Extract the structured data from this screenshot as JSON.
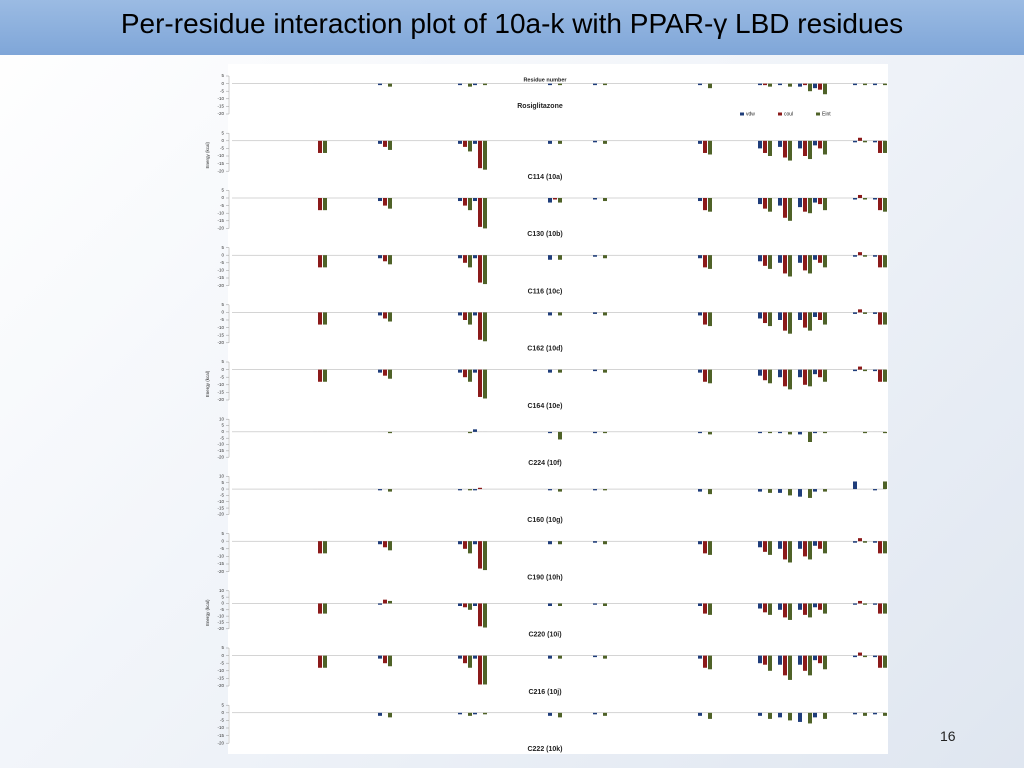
{
  "slide": {
    "title": "Per-residue interaction plot of 10a-k with PPAR-γ LBD residues",
    "page_number": "16"
  },
  "figure": {
    "xlabel": "Residue number",
    "ylabel": "Energy (kcal)"
  },
  "chart_data": [
    {
      "type": "bar",
      "label": "Rosiglitazone",
      "categories": [
        null,
        null,
        null,
        null,
        null,
        null,
        null,
        null,
        null,
        null,
        null,
        null,
        null
      ],
      "ylim": [
        -20,
        5
      ],
      "yticks": [
        5,
        0,
        -5,
        -10,
        -15,
        -20
      ],
      "legend": "top-right",
      "series": [
        {
          "name": "vdw",
          "color": "#1f3d7a",
          "values": [
            0,
            -1,
            -1,
            -1,
            -1,
            -1,
            -1,
            -1,
            -1,
            -2,
            -3,
            -1,
            -1
          ]
        },
        {
          "name": "coul",
          "color": "#8b1a1a",
          "values": [
            0,
            0,
            0,
            0,
            0,
            0,
            0,
            -1,
            0,
            -1,
            -4,
            0,
            0
          ]
        },
        {
          "name": "Eint",
          "color": "#4f6228",
          "values": [
            0,
            -2,
            -2,
            -1,
            -1,
            -1,
            -3,
            -2,
            -2,
            -5,
            -7,
            -1,
            -1
          ]
        }
      ]
    },
    {
      "type": "bar",
      "label": "C114 (10a)",
      "categories": [
        null,
        null,
        null,
        null,
        null,
        null,
        null,
        null,
        null,
        null,
        null,
        null,
        null
      ],
      "ylim": [
        -20,
        5
      ],
      "yticks": [
        5,
        0,
        -5,
        -10,
        -15,
        -20
      ],
      "series": [
        {
          "name": "vdw",
          "color": "#1f3d7a",
          "values": [
            0,
            -2,
            -2,
            -2,
            -2,
            -1,
            -2,
            -5,
            -4,
            -5,
            -3,
            -1,
            -1
          ]
        },
        {
          "name": "coul",
          "color": "#8b1a1a",
          "values": [
            -8,
            -4,
            -4,
            -18,
            0,
            0,
            -8,
            -8,
            -11,
            -10,
            -5,
            2,
            -8
          ]
        },
        {
          "name": "Eint",
          "color": "#4f6228",
          "values": [
            -8,
            -6,
            -7,
            -19,
            -2,
            -2,
            -9,
            -10,
            -13,
            -12,
            -9,
            -1,
            -8
          ]
        }
      ]
    },
    {
      "type": "bar",
      "label": "C130 (10b)",
      "categories": [
        null,
        null,
        null,
        null,
        null,
        null,
        null,
        null,
        null,
        null,
        null,
        null,
        null
      ],
      "ylim": [
        -20,
        5
      ],
      "yticks": [
        5,
        0,
        -5,
        -10,
        -15,
        -20
      ],
      "series": [
        {
          "name": "vdw",
          "color": "#1f3d7a",
          "values": [
            0,
            -2,
            -2,
            -2,
            -3,
            -1,
            -2,
            -4,
            -5,
            -6,
            -3,
            -1,
            -1
          ]
        },
        {
          "name": "coul",
          "color": "#8b1a1a",
          "values": [
            -8,
            -5,
            -5,
            -19,
            -1,
            0,
            -8,
            -7,
            -13,
            -9,
            -4,
            2,
            -8
          ]
        },
        {
          "name": "Eint",
          "color": "#4f6228",
          "values": [
            -8,
            -7,
            -8,
            -20,
            -3,
            -2,
            -9,
            -9,
            -15,
            -10,
            -8,
            -1,
            -9
          ]
        }
      ]
    },
    {
      "type": "bar",
      "label": "C116 (10c)",
      "categories": [
        null,
        null,
        null,
        null,
        null,
        null,
        null,
        null,
        null,
        null,
        null,
        null,
        null
      ],
      "ylim": [
        -20,
        5
      ],
      "yticks": [
        5,
        0,
        -5,
        -10,
        -15,
        -20
      ],
      "series": [
        {
          "name": "vdw",
          "color": "#1f3d7a",
          "values": [
            0,
            -2,
            -2,
            -2,
            -3,
            -1,
            -2,
            -4,
            -5,
            -5,
            -3,
            -1,
            -1
          ]
        },
        {
          "name": "coul",
          "color": "#8b1a1a",
          "values": [
            -8,
            -4,
            -5,
            -18,
            0,
            0,
            -8,
            -7,
            -12,
            -10,
            -5,
            2,
            -8
          ]
        },
        {
          "name": "Eint",
          "color": "#4f6228",
          "values": [
            -8,
            -6,
            -8,
            -19,
            -3,
            -2,
            -9,
            -9,
            -14,
            -12,
            -8,
            -1,
            -8
          ]
        }
      ]
    },
    {
      "type": "bar",
      "label": "C162 (10d)",
      "categories": [
        null,
        null,
        null,
        null,
        null,
        null,
        null,
        null,
        null,
        null,
        null,
        null,
        null
      ],
      "ylim": [
        -20,
        5
      ],
      "yticks": [
        5,
        0,
        -5,
        -10,
        -15,
        -20
      ],
      "series": [
        {
          "name": "vdw",
          "color": "#1f3d7a",
          "values": [
            0,
            -2,
            -2,
            -2,
            -2,
            -1,
            -2,
            -4,
            -5,
            -5,
            -3,
            -1,
            -1
          ]
        },
        {
          "name": "coul",
          "color": "#8b1a1a",
          "values": [
            -8,
            -4,
            -5,
            -18,
            0,
            0,
            -8,
            -7,
            -12,
            -10,
            -5,
            2,
            -8
          ]
        },
        {
          "name": "Eint",
          "color": "#4f6228",
          "values": [
            -8,
            -6,
            -8,
            -19,
            -2,
            -2,
            -9,
            -9,
            -14,
            -12,
            -8,
            -1,
            -8
          ]
        }
      ]
    },
    {
      "type": "bar",
      "label": "C164 (10e)",
      "categories": [
        null,
        null,
        null,
        null,
        null,
        null,
        null,
        null,
        null,
        null,
        null,
        null,
        null
      ],
      "ylim": [
        -20,
        5
      ],
      "yticks": [
        5,
        0,
        -5,
        -10,
        -15,
        -20
      ],
      "series": [
        {
          "name": "vdw",
          "color": "#1f3d7a",
          "values": [
            0,
            -2,
            -2,
            -2,
            -2,
            -1,
            -2,
            -4,
            -5,
            -5,
            -3,
            -1,
            -1
          ]
        },
        {
          "name": "coul",
          "color": "#8b1a1a",
          "values": [
            -8,
            -4,
            -5,
            -18,
            0,
            0,
            -8,
            -7,
            -11,
            -10,
            -5,
            2,
            -8
          ]
        },
        {
          "name": "Eint",
          "color": "#4f6228",
          "values": [
            -8,
            -6,
            -8,
            -19,
            -2,
            -2,
            -9,
            -9,
            -13,
            -11,
            -8,
            -1,
            -8
          ]
        }
      ]
    },
    {
      "type": "bar",
      "label": "C224 (10f)",
      "categories": [
        null,
        null,
        null,
        null,
        null,
        null,
        null,
        null,
        null,
        null,
        null,
        null,
        null
      ],
      "ylim": [
        -20,
        10
      ],
      "yticks": [
        10,
        5,
        0,
        -5,
        -10,
        -15,
        -20
      ],
      "series": [
        {
          "name": "vdw",
          "color": "#1f3d7a",
          "values": [
            0,
            0,
            0,
            2,
            -1,
            -1,
            -1,
            -1,
            -1,
            -2,
            -1,
            0,
            0
          ]
        },
        {
          "name": "coul",
          "color": "#8b1a1a",
          "values": [
            0,
            0,
            0,
            0,
            0,
            0,
            0,
            0,
            0,
            0,
            0,
            0,
            0
          ]
        },
        {
          "name": "Eint",
          "color": "#4f6228",
          "values": [
            0,
            -1,
            -1,
            0,
            -6,
            -1,
            -2,
            -1,
            -2,
            -8,
            -1,
            -1,
            -1
          ]
        }
      ]
    },
    {
      "type": "bar",
      "label": "C160 (10g)",
      "categories": [
        null,
        null,
        null,
        null,
        null,
        null,
        null,
        null,
        null,
        null,
        null,
        null,
        null
      ],
      "ylim": [
        -20,
        10
      ],
      "yticks": [
        10,
        5,
        0,
        -5,
        -10,
        -15,
        -20
      ],
      "series": [
        {
          "name": "vdw",
          "color": "#1f3d7a",
          "values": [
            0,
            -1,
            -1,
            -1,
            -1,
            -1,
            -2,
            -2,
            -3,
            -6,
            -2,
            6,
            -1
          ]
        },
        {
          "name": "coul",
          "color": "#8b1a1a",
          "values": [
            0,
            0,
            0,
            1,
            0,
            0,
            0,
            0,
            0,
            0,
            0,
            0,
            0
          ]
        },
        {
          "name": "Eint",
          "color": "#4f6228",
          "values": [
            0,
            -2,
            -1,
            0,
            -2,
            -1,
            -4,
            -3,
            -5,
            -7,
            -2,
            0,
            6
          ]
        }
      ]
    },
    {
      "type": "bar",
      "label": "C190 (10h)",
      "categories": [
        null,
        null,
        null,
        null,
        null,
        null,
        null,
        null,
        null,
        null,
        null,
        null,
        null
      ],
      "ylim": [
        -20,
        5
      ],
      "yticks": [
        5,
        0,
        -5,
        -10,
        -15,
        -20
      ],
      "series": [
        {
          "name": "vdw",
          "color": "#1f3d7a",
          "values": [
            0,
            -2,
            -2,
            -2,
            -2,
            -1,
            -2,
            -4,
            -5,
            -5,
            -3,
            -1,
            -1
          ]
        },
        {
          "name": "coul",
          "color": "#8b1a1a",
          "values": [
            -8,
            -4,
            -5,
            -18,
            0,
            0,
            -8,
            -7,
            -12,
            -10,
            -5,
            2,
            -8
          ]
        },
        {
          "name": "Eint",
          "color": "#4f6228",
          "values": [
            -8,
            -6,
            -8,
            -19,
            -2,
            -2,
            -9,
            -9,
            -14,
            -12,
            -8,
            -1,
            -8
          ]
        }
      ]
    },
    {
      "type": "bar",
      "label": "C220 (10i)",
      "categories": [
        null,
        null,
        null,
        null,
        null,
        null,
        null,
        null,
        null,
        null,
        null,
        null,
        null
      ],
      "ylim": [
        -20,
        10
      ],
      "yticks": [
        10,
        5,
        0,
        -5,
        -10,
        -15,
        -20
      ],
      "series": [
        {
          "name": "vdw",
          "color": "#1f3d7a",
          "values": [
            0,
            -1,
            -2,
            -2,
            -2,
            -1,
            -2,
            -4,
            -5,
            -5,
            -3,
            -1,
            -1
          ]
        },
        {
          "name": "coul",
          "color": "#8b1a1a",
          "values": [
            -8,
            3,
            -3,
            -18,
            0,
            0,
            -8,
            -7,
            -11,
            -9,
            -5,
            2,
            -8
          ]
        },
        {
          "name": "Eint",
          "color": "#4f6228",
          "values": [
            -8,
            2,
            -5,
            -19,
            -2,
            -2,
            -9,
            -9,
            -13,
            -11,
            -8,
            -1,
            -8
          ]
        }
      ]
    },
    {
      "type": "bar",
      "label": "C216 (10j)",
      "categories": [
        null,
        null,
        null,
        null,
        null,
        null,
        null,
        null,
        null,
        null,
        null,
        null,
        null
      ],
      "ylim": [
        -20,
        5
      ],
      "yticks": [
        5,
        0,
        -5,
        -10,
        -15,
        -20
      ],
      "series": [
        {
          "name": "vdw",
          "color": "#1f3d7a",
          "values": [
            0,
            -2,
            -2,
            -2,
            -2,
            -1,
            -2,
            -5,
            -6,
            -6,
            -3,
            -1,
            -1
          ]
        },
        {
          "name": "coul",
          "color": "#8b1a1a",
          "values": [
            -8,
            -5,
            -5,
            -19,
            0,
            0,
            -8,
            -6,
            -13,
            -10,
            -5,
            2,
            -8
          ]
        },
        {
          "name": "Eint",
          "color": "#4f6228",
          "values": [
            -8,
            -7,
            -8,
            -19,
            -2,
            -2,
            -9,
            -10,
            -16,
            -13,
            -9,
            -1,
            -8
          ]
        }
      ]
    },
    {
      "type": "bar",
      "label": "C222 (10k)",
      "categories": [
        null,
        null,
        null,
        null,
        null,
        null,
        null,
        null,
        null,
        null,
        null,
        null,
        null
      ],
      "ylim": [
        -20,
        5
      ],
      "yticks": [
        5,
        0,
        -5,
        -10,
        -15,
        -20
      ],
      "series": [
        {
          "name": "vdw",
          "color": "#1f3d7a",
          "values": [
            0,
            -2,
            -1,
            -1,
            -2,
            -1,
            -2,
            -2,
            -3,
            -6,
            -3,
            -1,
            -1
          ]
        },
        {
          "name": "coul",
          "color": "#8b1a1a",
          "values": [
            0,
            0,
            0,
            0,
            0,
            0,
            0,
            0,
            0,
            0,
            0,
            0,
            0
          ]
        },
        {
          "name": "Eint",
          "color": "#4f6228",
          "values": [
            0,
            -3,
            -2,
            -1,
            -3,
            -2,
            -4,
            -4,
            -5,
            -7,
            -4,
            -2,
            -2
          ]
        }
      ]
    }
  ]
}
